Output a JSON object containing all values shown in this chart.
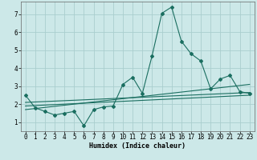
{
  "xlabel": "Humidex (Indice chaleur)",
  "ylabel": "",
  "background_color": "#cce8e8",
  "grid_color": "#aacece",
  "line_color": "#1a6e60",
  "xlim": [
    -0.5,
    23.5
  ],
  "ylim": [
    0.5,
    7.7
  ],
  "xticks": [
    0,
    1,
    2,
    3,
    4,
    5,
    6,
    7,
    8,
    9,
    10,
    11,
    12,
    13,
    14,
    15,
    16,
    17,
    18,
    19,
    20,
    21,
    22,
    23
  ],
  "yticks": [
    1,
    2,
    3,
    4,
    5,
    6,
    7
  ],
  "main_x": [
    0,
    1,
    2,
    3,
    4,
    5,
    6,
    7,
    8,
    9,
    10,
    11,
    12,
    13,
    14,
    15,
    16,
    17,
    18,
    19,
    20,
    21,
    22,
    23
  ],
  "main_y": [
    2.5,
    1.8,
    1.6,
    1.4,
    1.5,
    1.6,
    0.8,
    1.7,
    1.85,
    1.9,
    3.1,
    3.5,
    2.6,
    4.7,
    7.05,
    7.4,
    5.5,
    4.8,
    4.4,
    2.85,
    3.4,
    3.6,
    2.7,
    2.6
  ],
  "line1_x": [
    0,
    23
  ],
  "line1_y": [
    2.1,
    2.65
  ],
  "line2_x": [
    0,
    23
  ],
  "line2_y": [
    1.9,
    2.5
  ],
  "line3_x": [
    0,
    23
  ],
  "line3_y": [
    1.7,
    3.1
  ]
}
